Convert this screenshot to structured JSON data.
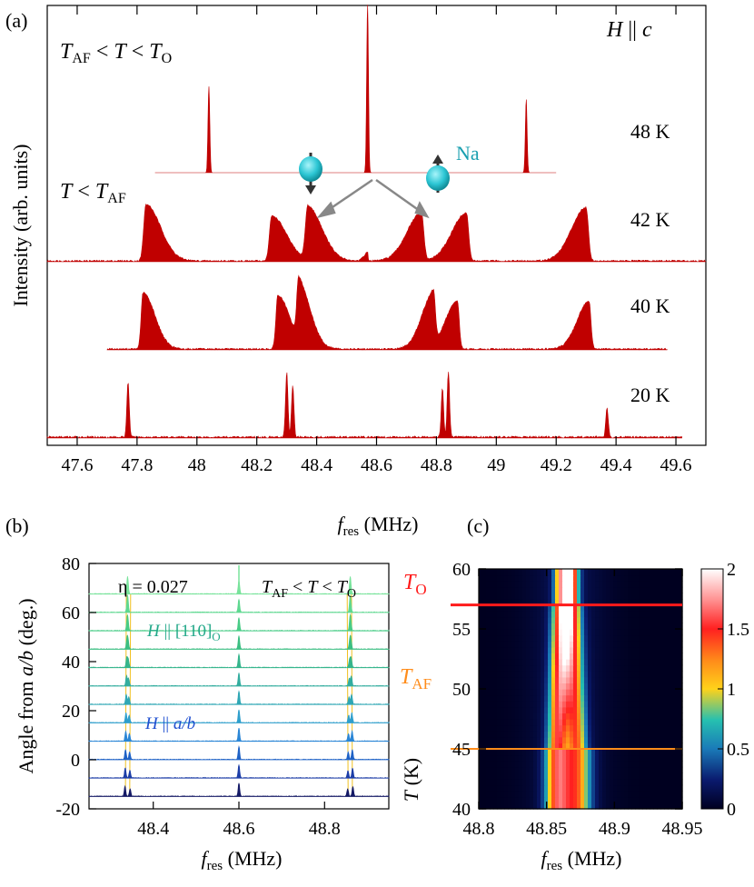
{
  "panels": {
    "a": {
      "label": "(a)"
    },
    "b": {
      "label": "(b)"
    },
    "c": {
      "label": "(c)"
    }
  },
  "chart_data": [
    {
      "type": "line",
      "panel": "a",
      "xlabel": "f_res (MHz)",
      "ylabel": "Intensity (arb. units)",
      "xlim": [
        47.5,
        49.7
      ],
      "xticks": [
        "47.6",
        "47.8",
        "48",
        "48.2",
        "48.4",
        "48.6",
        "48.8",
        "49",
        "49.2",
        "49.4",
        "49.6"
      ],
      "annotations": [
        "H || c",
        "T_AF < T < T_O",
        "T < T_AF",
        "Na"
      ],
      "series": [
        {
          "name": "48 K",
          "x_range": [
            47.86,
            49.2
          ],
          "peaks": [
            {
              "x": 48.04,
              "h": 1.0
            },
            {
              "x": 48.57,
              "h": 1.95
            },
            {
              "x": 49.1,
              "h": 0.85
            }
          ]
        },
        {
          "name": "42 K",
          "x_range": [
            47.5,
            49.7
          ],
          "peaks": [
            {
              "x": 47.83,
              "h": 1.0
            },
            {
              "x": 48.25,
              "h": 0.8
            },
            {
              "x": 48.37,
              "h": 0.95
            },
            {
              "x": 48.57,
              "h": 0.15
            },
            {
              "x": 48.75,
              "h": 0.85
            },
            {
              "x": 48.9,
              "h": 0.85
            },
            {
              "x": 49.3,
              "h": 0.95
            }
          ]
        },
        {
          "name": "40 K",
          "x_range": [
            47.7,
            49.57
          ],
          "peaks": [
            {
              "x": 47.82,
              "h": 1.0
            },
            {
              "x": 48.27,
              "h": 0.95
            },
            {
              "x": 48.34,
              "h": 1.1
            },
            {
              "x": 48.79,
              "h": 0.95
            },
            {
              "x": 48.87,
              "h": 0.85
            },
            {
              "x": 49.31,
              "h": 0.85
            }
          ]
        },
        {
          "name": "20 K",
          "x_range": [
            47.5,
            49.62
          ],
          "peaks": [
            {
              "x": 47.77,
              "h": 0.85
            },
            {
              "x": 48.3,
              "h": 1.0
            },
            {
              "x": 48.32,
              "h": 0.8
            },
            {
              "x": 48.82,
              "h": 0.75
            },
            {
              "x": 48.84,
              "h": 1.0
            },
            {
              "x": 49.37,
              "h": 0.45
            }
          ]
        }
      ]
    },
    {
      "type": "line",
      "panel": "b",
      "xlabel": "f_res (MHz)",
      "ylabel": "Angle from a/b (deg.)",
      "xlim": [
        48.25,
        48.95
      ],
      "ylim": [
        -20,
        80
      ],
      "yticks": [
        "-20",
        "0",
        "20",
        "40",
        "60",
        "80"
      ],
      "xticks": [
        "48.4",
        "48.6",
        "48.8"
      ],
      "annotations": [
        "η = 0.027",
        "T_AF < T < T_O",
        "H || [110]_O",
        "H || a/b"
      ],
      "angles": [
        -15,
        -7.5,
        0,
        7.5,
        15,
        22.5,
        30,
        37.5,
        45,
        52.5,
        60,
        67.5
      ],
      "colors": [
        "#151a66",
        "#1d3ea8",
        "#1f62c6",
        "#2b86d6",
        "#2f9fcc",
        "#2fa7b5",
        "#33ad9f",
        "#35b58c",
        "#3bbf82",
        "#48cc86",
        "#5ed890",
        "#78e39b"
      ]
    },
    {
      "type": "heatmap",
      "panel": "c",
      "xlabel": "f_res (MHz)",
      "ylabel": "T (K)",
      "xlim": [
        48.8,
        48.95
      ],
      "ylim": [
        40,
        60
      ],
      "xticks": [
        "48.8",
        "48.85",
        "48.9",
        "48.95"
      ],
      "yticks": [
        "40",
        "45",
        "50",
        "55",
        "60"
      ],
      "colorbar": {
        "min": 0,
        "max": 2,
        "ticks": [
          "0",
          "0.5",
          "1",
          "1.5",
          "2"
        ]
      },
      "hlines": [
        {
          "label": "T_O",
          "T": 57,
          "color": "#ff1a1a"
        },
        {
          "label": "T_AF",
          "T": 45,
          "color": "#ff8c1a"
        }
      ]
    }
  ]
}
